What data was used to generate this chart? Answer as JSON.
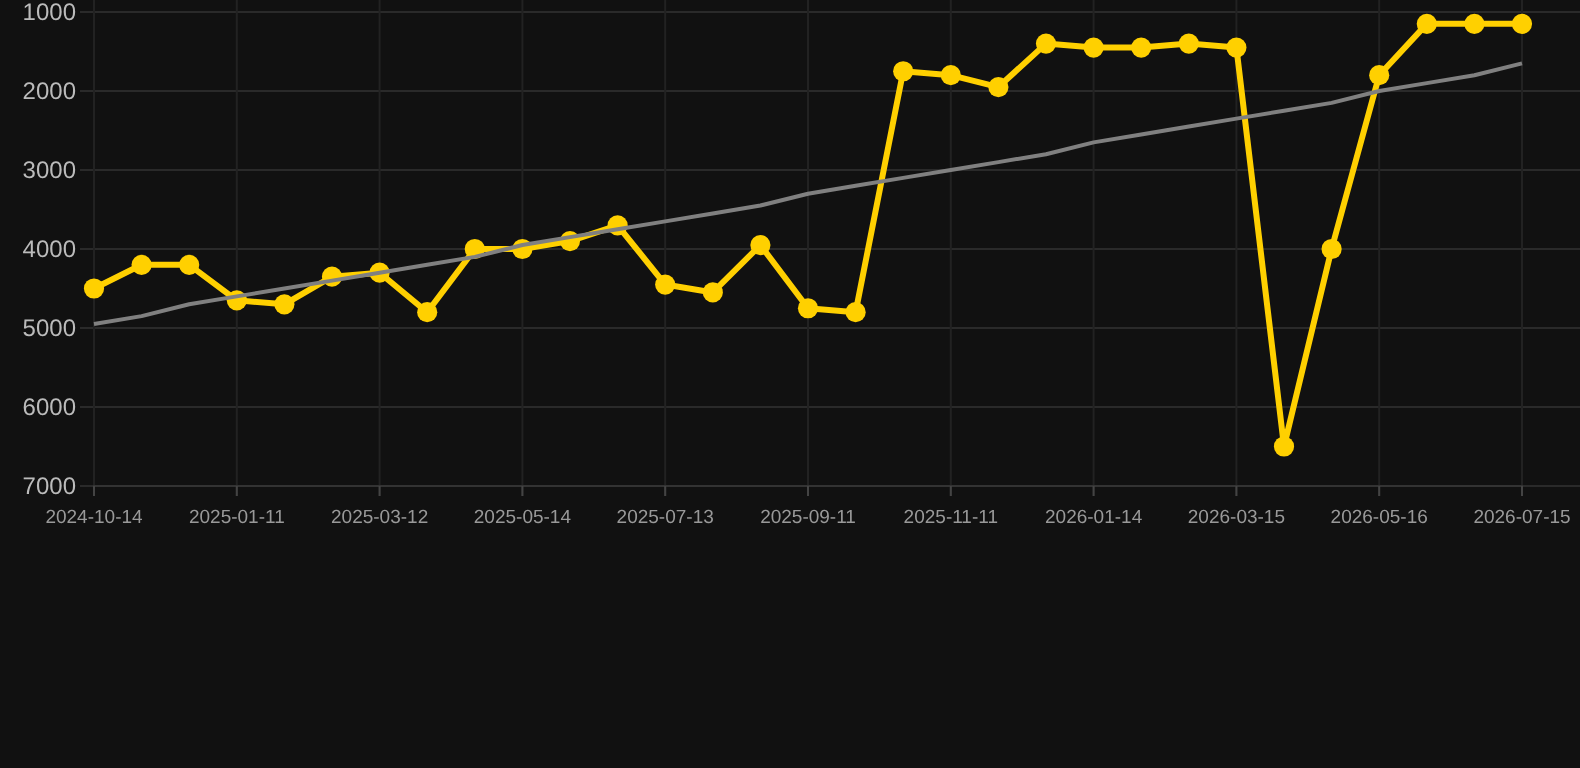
{
  "chart_data": {
    "type": "line",
    "categories": [
      "2024-10-14",
      null,
      null,
      "2025-01-11",
      null,
      null,
      "2025-03-12",
      null,
      null,
      "2025-05-14",
      null,
      null,
      "2025-07-13",
      null,
      null,
      "2025-09-11",
      null,
      null,
      "2025-11-11",
      null,
      null,
      "2026-01-14",
      null,
      null,
      "2026-03-15",
      null,
      null,
      "2026-05-16",
      null,
      null,
      "2026-07-15"
    ],
    "series": [
      {
        "color": "#ffd000",
        "marker": "circle",
        "values": [
          4500,
          4200,
          4200,
          4650,
          4700,
          4350,
          4300,
          4800,
          4000,
          4000,
          3900,
          3700,
          4450,
          4550,
          3950,
          4750,
          4800,
          1750,
          1800,
          1950,
          1400,
          1450,
          1450,
          1400,
          1450,
          6500,
          4000,
          1800,
          1150,
          1150,
          1150
        ]
      },
      {
        "type": "line",
        "color": "#808080",
        "marker": "none",
        "values": [
          4950,
          4850,
          4700,
          4600,
          4500,
          4400,
          4300,
          4200,
          4100,
          3950,
          3850,
          3750,
          3650,
          3550,
          3450,
          3300,
          3200,
          3100,
          3000,
          2900,
          2800,
          2650,
          2550,
          2450,
          2350,
          2250,
          2150,
          2000,
          1900,
          1800,
          1650
        ]
      }
    ],
    "ylim": [
      7000,
      1000
    ],
    "yticks": [
      1000,
      2000,
      3000,
      4000,
      5000,
      6000,
      7000
    ],
    "grid": true
  }
}
